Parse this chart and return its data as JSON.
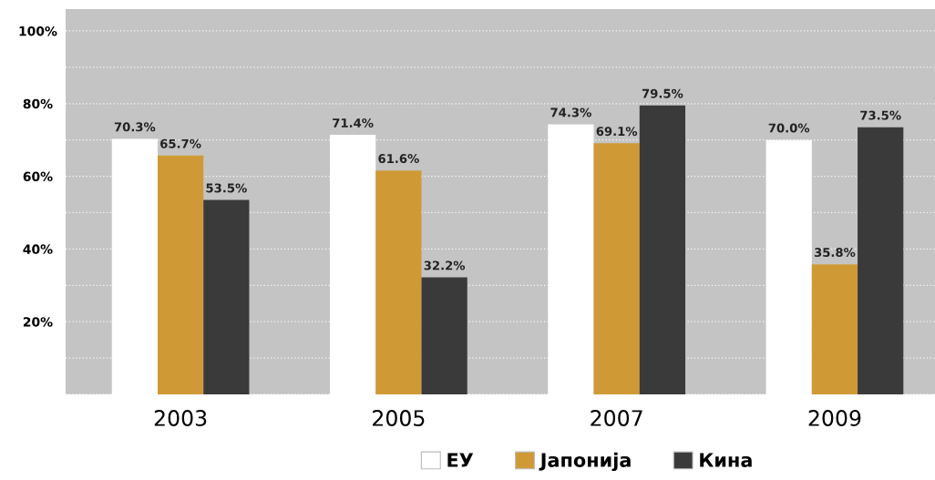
{
  "chart_data": {
    "type": "bar",
    "categories": [
      "2003",
      "2005",
      "2007",
      "2009"
    ],
    "series": [
      {
        "name": "ЕУ",
        "color": "#ffffff",
        "values": [
          70.3,
          71.4,
          74.3,
          70.0
        ],
        "value_labels": [
          "70.3%",
          "71.4%",
          "74.3%",
          "70.0%"
        ]
      },
      {
        "name": "Јапонија",
        "color": "#cf9a36",
        "values": [
          65.7,
          61.6,
          69.1,
          35.8
        ],
        "value_labels": [
          "65.7%",
          "61.6%",
          "69.1%",
          "35.8%"
        ]
      },
      {
        "name": "Кина",
        "color": "#3a3a3a",
        "values": [
          53.5,
          32.2,
          79.5,
          73.5
        ],
        "value_labels": [
          "53.5%",
          "32.2%",
          "79.5%",
          "73.5%"
        ]
      }
    ],
    "ylim": [
      0,
      106
    ],
    "yticks": [
      {
        "value": 0,
        "label": null
      },
      {
        "value": 10,
        "label": null
      },
      {
        "value": 20,
        "label": "20%"
      },
      {
        "value": 30,
        "label": null
      },
      {
        "value": 40,
        "label": "40%"
      },
      {
        "value": 50,
        "label": null
      },
      {
        "value": 60,
        "label": "60%"
      },
      {
        "value": 70,
        "label": null
      },
      {
        "value": 80,
        "label": "80%"
      },
      {
        "value": 90,
        "label": null
      },
      {
        "value": 100,
        "label": "100%"
      }
    ],
    "grid": "y",
    "legend": "bottom"
  }
}
